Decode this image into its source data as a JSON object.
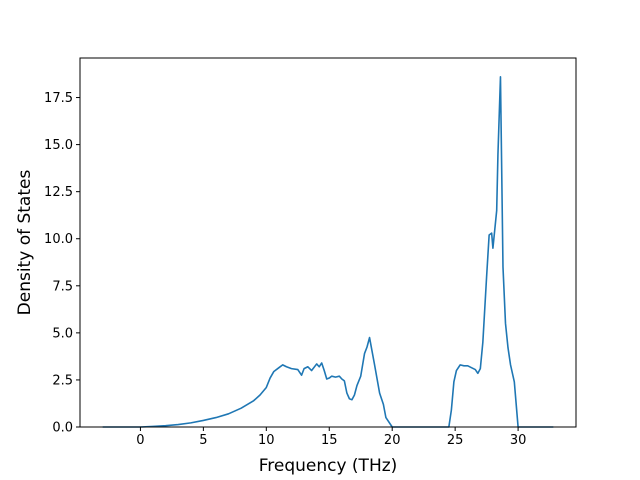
{
  "chart_data": {
    "type": "line",
    "title": "",
    "xlabel": "Frequency (THz)",
    "ylabel": "Density of States",
    "xlim": [
      -4.8,
      34.6
    ],
    "ylim": [
      0,
      19.6
    ],
    "xticks": [
      0,
      5,
      10,
      15,
      20,
      25,
      30
    ],
    "xtick_labels": [
      "0",
      "5",
      "10",
      "15",
      "20",
      "25",
      "30"
    ],
    "yticks": [
      0,
      2.5,
      5,
      7.5,
      10,
      12.5,
      15,
      17.5
    ],
    "ytick_labels": [
      "0.0",
      "2.5",
      "5.0",
      "7.5",
      "10.0",
      "12.5",
      "15.0",
      "17.5"
    ],
    "grid": false,
    "legend": false,
    "series": [
      {
        "color": "#1f77b4",
        "x": [
          -3.0,
          0.0,
          1.0,
          2.0,
          3.0,
          4.0,
          5.0,
          6.0,
          7.0,
          8.0,
          9.0,
          9.5,
          10.0,
          10.3,
          10.6,
          11.0,
          11.3,
          11.6,
          12.0,
          12.5,
          12.8,
          13.0,
          13.3,
          13.6,
          14.0,
          14.2,
          14.4,
          14.6,
          14.8,
          15.0,
          15.2,
          15.5,
          15.8,
          16.0,
          16.2,
          16.4,
          16.6,
          16.8,
          17.0,
          17.2,
          17.5,
          17.8,
          18.0,
          18.2,
          18.6,
          19.0,
          19.3,
          19.5,
          20.0,
          24.5,
          24.7,
          24.9,
          25.1,
          25.4,
          25.7,
          26.0,
          26.3,
          26.6,
          26.8,
          27.0,
          27.2,
          27.5,
          27.7,
          27.9,
          28.0,
          28.3,
          28.4,
          28.6,
          28.8,
          29.0,
          29.2,
          29.4,
          29.7,
          30.0,
          32.8
        ],
        "y": [
          0.0,
          0.0,
          0.03,
          0.07,
          0.13,
          0.22,
          0.35,
          0.5,
          0.7,
          1.0,
          1.4,
          1.7,
          2.1,
          2.6,
          2.95,
          3.15,
          3.3,
          3.2,
          3.1,
          3.05,
          2.75,
          3.1,
          3.2,
          3.0,
          3.35,
          3.2,
          3.4,
          3.0,
          2.55,
          2.6,
          2.7,
          2.65,
          2.7,
          2.55,
          2.45,
          1.8,
          1.5,
          1.45,
          1.7,
          2.2,
          2.7,
          3.9,
          4.25,
          4.75,
          3.3,
          1.8,
          1.2,
          0.5,
          0.0,
          0.0,
          0.9,
          2.4,
          3.0,
          3.3,
          3.25,
          3.25,
          3.15,
          3.05,
          2.85,
          3.1,
          4.5,
          8.0,
          10.2,
          10.3,
          9.5,
          11.5,
          14.5,
          18.6,
          8.5,
          5.5,
          4.2,
          3.3,
          2.4,
          0.0,
          0.0
        ]
      }
    ]
  }
}
